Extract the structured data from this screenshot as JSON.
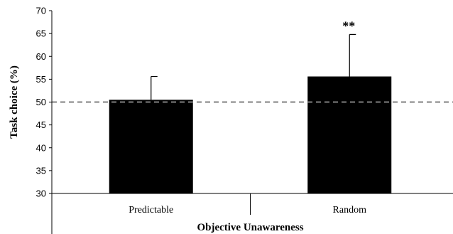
{
  "chart_data": {
    "type": "bar",
    "categories": [
      "Predictable",
      "Random"
    ],
    "values": [
      50.5,
      55.6
    ],
    "error_bars": [
      5.1,
      9.2
    ],
    "annotations": [
      "",
      "**"
    ],
    "reference_line": 50,
    "xlabel": "Objective Unawareness",
    "ylabel": "Task choice (%)",
    "ylim": [
      30,
      70
    ],
    "yticks": [
      30,
      35,
      40,
      45,
      50,
      55,
      60,
      65,
      70
    ],
    "grid": false,
    "legend": "none",
    "colors": {
      "bar": "#000000",
      "reference": "#808080"
    }
  }
}
